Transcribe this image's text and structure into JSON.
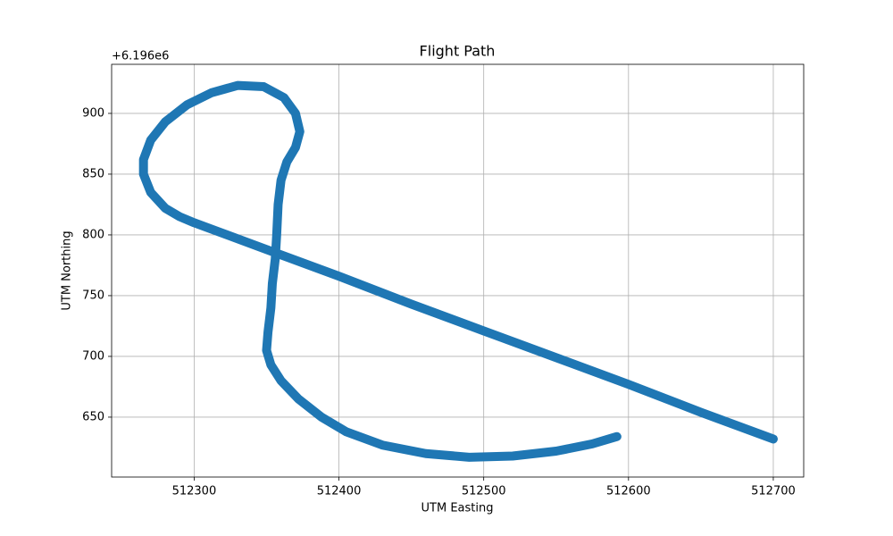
{
  "chart_data": {
    "type": "line",
    "title": "Flight Path",
    "xlabel": "UTM Easting",
    "ylabel": "UTM Northing",
    "y_offset_label": "+6.196e6",
    "color": "#1f77b4",
    "grid": true,
    "xlim": [
      512243,
      512721
    ],
    "ylim": [
      600.7,
      940.4
    ],
    "xticks": [
      512300,
      512400,
      512500,
      512600,
      512700
    ],
    "yticks": [
      650,
      700,
      750,
      800,
      850,
      900
    ],
    "x": [
      512700,
      512650,
      512600,
      512550,
      512500,
      512450,
      512400,
      512350,
      512300,
      512290,
      512280,
      512270,
      512265,
      512265,
      512270,
      512280,
      512295,
      512312,
      512330,
      512348,
      512362,
      512370,
      512373,
      512370,
      512364,
      512360,
      512358,
      512357,
      512356,
      512354,
      512353,
      512351,
      512350,
      512353,
      512360,
      512372,
      512388,
      512405,
      512430,
      512460,
      512490,
      512520,
      512550,
      512575,
      512592
    ],
    "values": [
      632,
      654,
      677,
      699,
      721,
      743,
      766,
      788,
      810,
      815,
      822,
      835,
      850,
      862,
      878,
      893,
      907,
      917,
      923,
      922,
      913,
      900,
      885,
      872,
      860,
      845,
      825,
      800,
      780,
      760,
      740,
      720,
      705,
      693,
      680,
      665,
      650,
      638,
      627,
      620,
      617,
      618,
      622,
      628,
      634
    ]
  }
}
